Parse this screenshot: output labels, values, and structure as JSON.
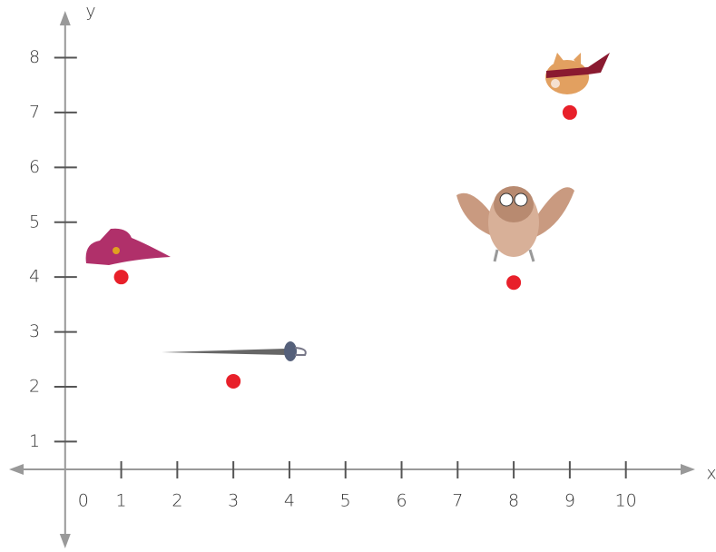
{
  "chart_data": {
    "type": "scatter",
    "x_label": "x",
    "y_label": "y",
    "x": [
      1,
      3,
      8,
      9
    ],
    "values": [
      4,
      2.1,
      3.9,
      7
    ],
    "color": "#e8202a",
    "xlim": [
      -1,
      11.3
    ],
    "ylim": [
      -0.88,
      8.72
    ],
    "xticks": [
      0,
      1,
      2,
      3,
      4,
      5,
      6,
      7,
      8,
      9,
      10
    ],
    "yticks": [
      1,
      2,
      3,
      4,
      5,
      6,
      7,
      8
    ]
  }
}
